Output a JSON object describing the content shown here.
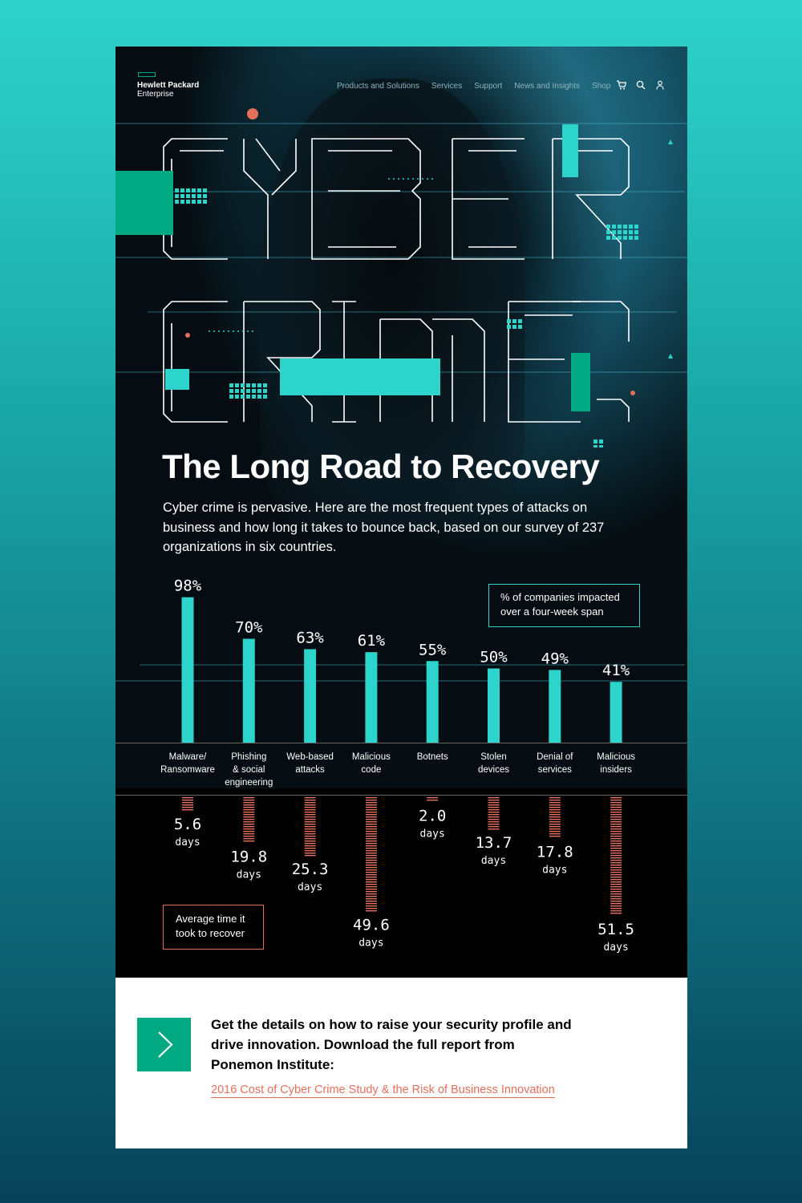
{
  "brand": {
    "line1": "Hewlett Packard",
    "line2": "Enterprise",
    "accent": "#01a982"
  },
  "nav": {
    "items": [
      "Products and Solutions",
      "Services",
      "Support",
      "News and Insights",
      "Shop"
    ],
    "icons": [
      "cart-icon",
      "search-icon",
      "user-icon"
    ]
  },
  "hero": {
    "title_art": "CYBER CRIME",
    "headline": "The Long Road to Recovery",
    "intro": "Cyber crime is pervasive. Here are the most frequent types of attacks on business and how long it takes to bounce back, based on our survey of 237 organizations in six countries."
  },
  "colors": {
    "bar_teal": "#2dd4cc",
    "recovery_salmon": "#e5705b",
    "accent_green": "#01a982"
  },
  "chart_data": {
    "type": "bar",
    "categories": [
      "Malware/\nRansomware",
      "Phishing\n& social\nengineering",
      "Web-based\nattacks",
      "Malicious\ncode",
      "Botnets",
      "Stolen\ndevices",
      "Denial of\nservices",
      "Malicious\ninsiders"
    ],
    "series": [
      {
        "name": "% of companies impacted over a four-week span",
        "values": [
          98,
          70,
          63,
          61,
          55,
          50,
          49,
          41
        ],
        "labels": [
          "98%",
          "70%",
          "63%",
          "61%",
          "55%",
          "50%",
          "49%",
          "41%"
        ],
        "direction": "up"
      },
      {
        "name": "Average time it took to recover",
        "values": [
          5.6,
          19.8,
          25.3,
          49.6,
          2.0,
          13.7,
          17.8,
          51.5
        ],
        "labels": [
          "5.6",
          "19.8",
          "25.3",
          "49.6",
          "2.0",
          "13.7",
          "17.8",
          "51.5"
        ],
        "unit": "days",
        "direction": "down"
      }
    ],
    "legend_top": "% of companies impacted over a four-week span",
    "legend_bottom": "Average time it took to recover"
  },
  "cta": {
    "text": "Get the details on how to raise your security profile and drive innovation. Download the full report from Ponemon Institute:",
    "link": "2016 Cost of Cyber Crime Study & the Risk of Business Innovation"
  }
}
